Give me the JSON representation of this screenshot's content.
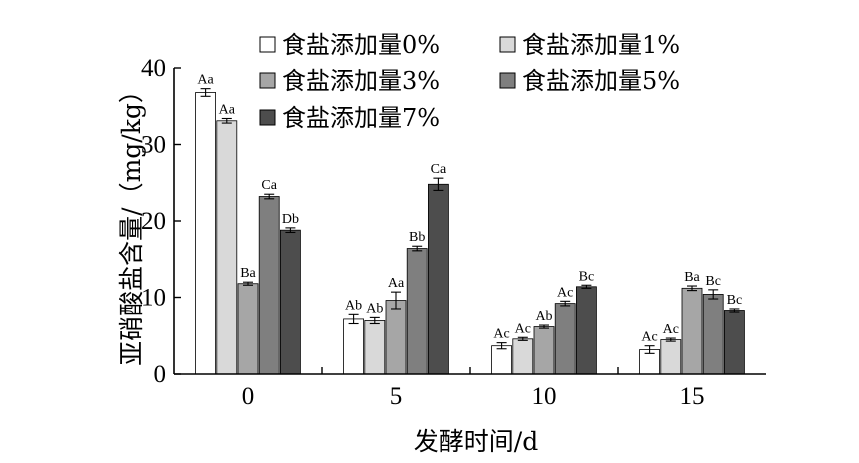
{
  "chart_data": {
    "type": "bar",
    "xlabel": "发酵时间/d",
    "ylabel": "亚硝酸盐含量/（mg/kg）",
    "ylim": [
      0,
      40
    ],
    "yticks": [
      "0",
      "10",
      "20",
      "30",
      "40"
    ],
    "categories": [
      "0",
      "5",
      "10",
      "15"
    ],
    "legend_position": "top",
    "series": [
      {
        "name": "食盐添加量0%",
        "color": "#ffffff",
        "values": [
          36.8,
          7.2,
          3.7,
          3.2
        ],
        "errors": [
          0.5,
          0.6,
          0.4,
          0.5
        ],
        "labels": [
          "Aa",
          "Ab",
          "Ac",
          "Ac"
        ]
      },
      {
        "name": "食盐添加量1%",
        "color": "#d9d9d9",
        "values": [
          33.1,
          7.0,
          4.6,
          4.5
        ],
        "errors": [
          0.3,
          0.4,
          0.2,
          0.2
        ],
        "labels": [
          "Aa",
          "Ab",
          "Ac",
          "Ac"
        ]
      },
      {
        "name": "食盐添加量3%",
        "color": "#a6a6a6",
        "values": [
          11.8,
          9.6,
          6.2,
          11.2
        ],
        "errors": [
          0.2,
          1.1,
          0.2,
          0.3
        ],
        "labels": [
          "Ba",
          "Aa",
          "Ab",
          "Ba"
        ]
      },
      {
        "name": "食盐添加量5%",
        "color": "#7f7f7f",
        "values": [
          23.2,
          16.4,
          9.2,
          10.4
        ],
        "errors": [
          0.3,
          0.3,
          0.3,
          0.6
        ],
        "labels": [
          "Ca",
          "Bb",
          "Ac",
          "Bc"
        ]
      },
      {
        "name": "食盐添加量7%",
        "color": "#4d4d4d",
        "values": [
          18.8,
          24.8,
          11.4,
          8.3
        ],
        "errors": [
          0.3,
          0.8,
          0.2,
          0.2
        ],
        "labels": [
          "Db",
          "Ca",
          "Bc",
          "Bc"
        ]
      }
    ]
  }
}
